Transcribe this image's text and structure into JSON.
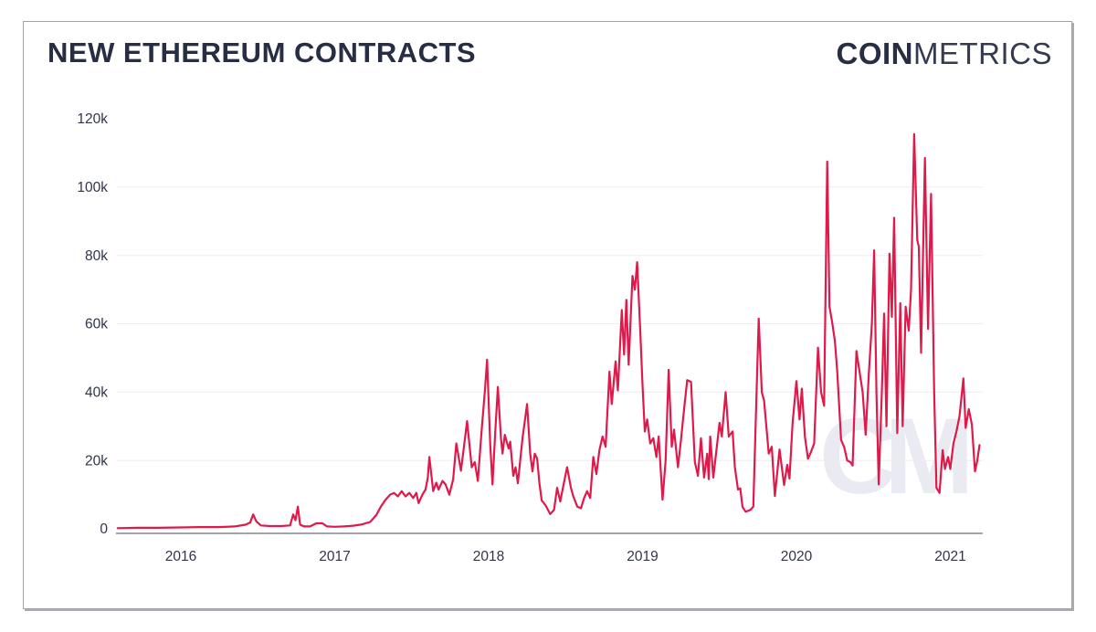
{
  "page": {
    "title": "NEW ETHEREUM CONTRACTS",
    "brand": {
      "bold": "COIN",
      "light": "METRICS"
    },
    "watermark": "CM"
  },
  "colors": {
    "accent": "#e0194b",
    "title_text": "#272d42",
    "tick_text": "#30354a",
    "gridline": "#ededf2",
    "axis_line": "#a4a4ab",
    "card_border": "#a2a2aa",
    "watermark": "#eaeaf2"
  },
  "chart_data": {
    "type": "line",
    "title": "NEW ETHEREUM CONTRACTS",
    "grid": "horizontal-only",
    "legend": "none",
    "x_axis": {
      "ticks": [
        2016,
        2017,
        2018,
        2019,
        2020,
        2021
      ],
      "range": [
        2015.55,
        2021.25
      ]
    },
    "y_axis": {
      "tick_labels": [
        "0",
        "20k",
        "40k",
        "60k",
        "80k",
        "100k",
        "120k"
      ],
      "tick_values": [
        0,
        20,
        40,
        60,
        80,
        100,
        120
      ],
      "range": [
        0,
        120
      ],
      "unit": "thousand new contracts"
    },
    "series": [
      {
        "name": "New Ethereum contracts (thousands, x = decimal year)",
        "color": "#e0194b",
        "points": [
          [
            2015.59,
            0.2
          ],
          [
            2015.72,
            0.3
          ],
          [
            2015.85,
            0.3
          ],
          [
            2016.0,
            0.4
          ],
          [
            2016.12,
            0.5
          ],
          [
            2016.25,
            0.5
          ],
          [
            2016.35,
            0.7
          ],
          [
            2016.42,
            1.2
          ],
          [
            2016.45,
            1.8
          ],
          [
            2016.47,
            4.2
          ],
          [
            2016.49,
            2.2
          ],
          [
            2016.52,
            1.0
          ],
          [
            2016.58,
            0.8
          ],
          [
            2016.65,
            0.8
          ],
          [
            2016.71,
            1.0
          ],
          [
            2016.73,
            4.2
          ],
          [
            2016.745,
            2.5
          ],
          [
            2016.76,
            6.5
          ],
          [
            2016.775,
            1.2
          ],
          [
            2016.8,
            0.7
          ],
          [
            2016.84,
            0.7
          ],
          [
            2016.88,
            1.6
          ],
          [
            2016.92,
            1.6
          ],
          [
            2016.95,
            0.7
          ],
          [
            2017.0,
            0.6
          ],
          [
            2017.06,
            0.7
          ],
          [
            2017.12,
            0.9
          ],
          [
            2017.18,
            1.3
          ],
          [
            2017.23,
            2.0
          ],
          [
            2017.27,
            4.0
          ],
          [
            2017.3,
            6.5
          ],
          [
            2017.33,
            8.5
          ],
          [
            2017.36,
            10.0
          ],
          [
            2017.385,
            10.5
          ],
          [
            2017.41,
            9.5
          ],
          [
            2017.435,
            11.0
          ],
          [
            2017.46,
            9.5
          ],
          [
            2017.485,
            10.5
          ],
          [
            2017.51,
            9.0
          ],
          [
            2017.53,
            10.5
          ],
          [
            2017.545,
            7.5
          ],
          [
            2017.57,
            10.0
          ],
          [
            2017.59,
            11.5
          ],
          [
            2017.605,
            15.0
          ],
          [
            2017.615,
            21.0
          ],
          [
            2017.64,
            11.0
          ],
          [
            2017.66,
            13.5
          ],
          [
            2017.675,
            11.5
          ],
          [
            2017.7,
            14.0
          ],
          [
            2017.72,
            13.0
          ],
          [
            2017.745,
            10.0
          ],
          [
            2017.77,
            14.5
          ],
          [
            2017.79,
            25.0
          ],
          [
            2017.82,
            17.0
          ],
          [
            2017.845,
            26.0
          ],
          [
            2017.86,
            31.5
          ],
          [
            2017.89,
            18.0
          ],
          [
            2017.91,
            19.5
          ],
          [
            2017.93,
            14.0
          ],
          [
            2017.955,
            29.0
          ],
          [
            2017.975,
            40.0
          ],
          [
            2017.99,
            49.5
          ],
          [
            2018.01,
            25.0
          ],
          [
            2018.025,
            13.0
          ],
          [
            2018.045,
            30.0
          ],
          [
            2018.06,
            41.5
          ],
          [
            2018.08,
            26.5
          ],
          [
            2018.09,
            22.0
          ],
          [
            2018.105,
            27.5
          ],
          [
            2018.13,
            23.5
          ],
          [
            2018.14,
            25.5
          ],
          [
            2018.16,
            15.5
          ],
          [
            2018.175,
            18.0
          ],
          [
            2018.19,
            13.3
          ],
          [
            2018.22,
            26.5
          ],
          [
            2018.25,
            36.5
          ],
          [
            2018.27,
            22.0
          ],
          [
            2018.285,
            16.8
          ],
          [
            2018.3,
            22.0
          ],
          [
            2018.315,
            20.5
          ],
          [
            2018.33,
            13.3
          ],
          [
            2018.345,
            8.3
          ],
          [
            2018.37,
            6.9
          ],
          [
            2018.4,
            4.3
          ],
          [
            2018.425,
            5.5
          ],
          [
            2018.445,
            12.0
          ],
          [
            2018.465,
            8.0
          ],
          [
            2018.487,
            13.0
          ],
          [
            2018.51,
            18.0
          ],
          [
            2018.535,
            12.0
          ],
          [
            2018.55,
            9.5
          ],
          [
            2018.576,
            6.5
          ],
          [
            2018.6,
            6.0
          ],
          [
            2018.62,
            9.0
          ],
          [
            2018.64,
            11.0
          ],
          [
            2018.66,
            9.0
          ],
          [
            2018.68,
            21.0
          ],
          [
            2018.7,
            16.0
          ],
          [
            2018.72,
            23.0
          ],
          [
            2018.74,
            27.0
          ],
          [
            2018.76,
            24.0
          ],
          [
            2018.785,
            46.0
          ],
          [
            2018.8,
            36.5
          ],
          [
            2018.825,
            49.0
          ],
          [
            2018.84,
            40.5
          ],
          [
            2018.865,
            64.0
          ],
          [
            2018.88,
            51.0
          ],
          [
            2018.895,
            67.0
          ],
          [
            2018.91,
            48.0
          ],
          [
            2018.935,
            74.0
          ],
          [
            2018.95,
            70.0
          ],
          [
            2018.965,
            78.0
          ],
          [
            2018.985,
            58.0
          ],
          [
            2019.0,
            42.0
          ],
          [
            2019.015,
            28.5
          ],
          [
            2019.03,
            32.0
          ],
          [
            2019.05,
            25.0
          ],
          [
            2019.07,
            26.5
          ],
          [
            2019.09,
            21.0
          ],
          [
            2019.105,
            27.0
          ],
          [
            2019.13,
            8.5
          ],
          [
            2019.15,
            20.0
          ],
          [
            2019.17,
            46.5
          ],
          [
            2019.19,
            24.0
          ],
          [
            2019.205,
            29.0
          ],
          [
            2019.23,
            18.0
          ],
          [
            2019.25,
            26.0
          ],
          [
            2019.27,
            35.0
          ],
          [
            2019.29,
            43.5
          ],
          [
            2019.315,
            43.0
          ],
          [
            2019.34,
            19.5
          ],
          [
            2019.36,
            15.5
          ],
          [
            2019.38,
            26.5
          ],
          [
            2019.4,
            15.0
          ],
          [
            2019.42,
            22.0
          ],
          [
            2019.43,
            14.5
          ],
          [
            2019.44,
            27.0
          ],
          [
            2019.46,
            15.0
          ],
          [
            2019.5,
            31.0
          ],
          [
            2019.515,
            27.0
          ],
          [
            2019.54,
            40.0
          ],
          [
            2019.56,
            27.0
          ],
          [
            2019.585,
            28.5
          ],
          [
            2019.6,
            18.0
          ],
          [
            2019.62,
            11.5
          ],
          [
            2019.635,
            11.8
          ],
          [
            2019.65,
            6.4
          ],
          [
            2019.67,
            5.0
          ],
          [
            2019.7,
            5.5
          ],
          [
            2019.72,
            6.5
          ],
          [
            2019.735,
            30.0
          ],
          [
            2019.755,
            61.5
          ],
          [
            2019.775,
            40.0
          ],
          [
            2019.79,
            37.5
          ],
          [
            2019.82,
            22.0
          ],
          [
            2019.84,
            24.0
          ],
          [
            2019.86,
            9.6
          ],
          [
            2019.89,
            23.2
          ],
          [
            2019.92,
            12.8
          ],
          [
            2019.94,
            18.7
          ],
          [
            2019.955,
            14.7
          ],
          [
            2019.975,
            31.0
          ],
          [
            2020.0,
            43.2
          ],
          [
            2020.02,
            32.0
          ],
          [
            2020.035,
            41.0
          ],
          [
            2020.055,
            27.0
          ],
          [
            2020.075,
            20.5
          ],
          [
            2020.095,
            22.5
          ],
          [
            2020.115,
            25.0
          ],
          [
            2020.14,
            53.0
          ],
          [
            2020.16,
            40.0
          ],
          [
            2020.18,
            36.0
          ],
          [
            2020.2,
            107.5
          ],
          [
            2020.215,
            65.0
          ],
          [
            2020.23,
            61.0
          ],
          [
            2020.25,
            55.0
          ],
          [
            2020.265,
            46.0
          ],
          [
            2020.29,
            26.0
          ],
          [
            2020.31,
            24.0
          ],
          [
            2020.33,
            20.0
          ],
          [
            2020.35,
            19.5
          ],
          [
            2020.365,
            18.5
          ],
          [
            2020.39,
            52.0
          ],
          [
            2020.41,
            46.0
          ],
          [
            2020.43,
            40.0
          ],
          [
            2020.45,
            27.5
          ],
          [
            2020.47,
            45.0
          ],
          [
            2020.49,
            60.0
          ],
          [
            2020.505,
            81.5
          ],
          [
            2020.52,
            40.0
          ],
          [
            2020.535,
            13.0
          ],
          [
            2020.555,
            40.0
          ],
          [
            2020.57,
            63.0
          ],
          [
            2020.585,
            30.0
          ],
          [
            2020.605,
            80.5
          ],
          [
            2020.62,
            62.0
          ],
          [
            2020.635,
            91.0
          ],
          [
            2020.655,
            28.0
          ],
          [
            2020.675,
            66.0
          ],
          [
            2020.69,
            30.0
          ],
          [
            2020.71,
            65.0
          ],
          [
            2020.73,
            58.0
          ],
          [
            2020.745,
            70.0
          ],
          [
            2020.765,
            115.5
          ],
          [
            2020.785,
            84.5
          ],
          [
            2020.795,
            82.5
          ],
          [
            2020.81,
            51.5
          ],
          [
            2020.835,
            108.5
          ],
          [
            2020.855,
            58.5
          ],
          [
            2020.875,
            98.0
          ],
          [
            2020.895,
            40.0
          ],
          [
            2020.91,
            12.0
          ],
          [
            2020.93,
            10.5
          ],
          [
            2020.95,
            23.0
          ],
          [
            2020.965,
            17.5
          ],
          [
            2020.985,
            21.0
          ],
          [
            2021.0,
            17.5
          ],
          [
            2021.02,
            25.0
          ],
          [
            2021.04,
            28.5
          ],
          [
            2021.06,
            33.0
          ],
          [
            2021.085,
            44.0
          ],
          [
            2021.1,
            29.5
          ],
          [
            2021.12,
            35.0
          ],
          [
            2021.14,
            30.5
          ],
          [
            2021.16,
            16.8
          ],
          [
            2021.175,
            20.0
          ],
          [
            2021.19,
            24.5
          ]
        ]
      }
    ]
  }
}
